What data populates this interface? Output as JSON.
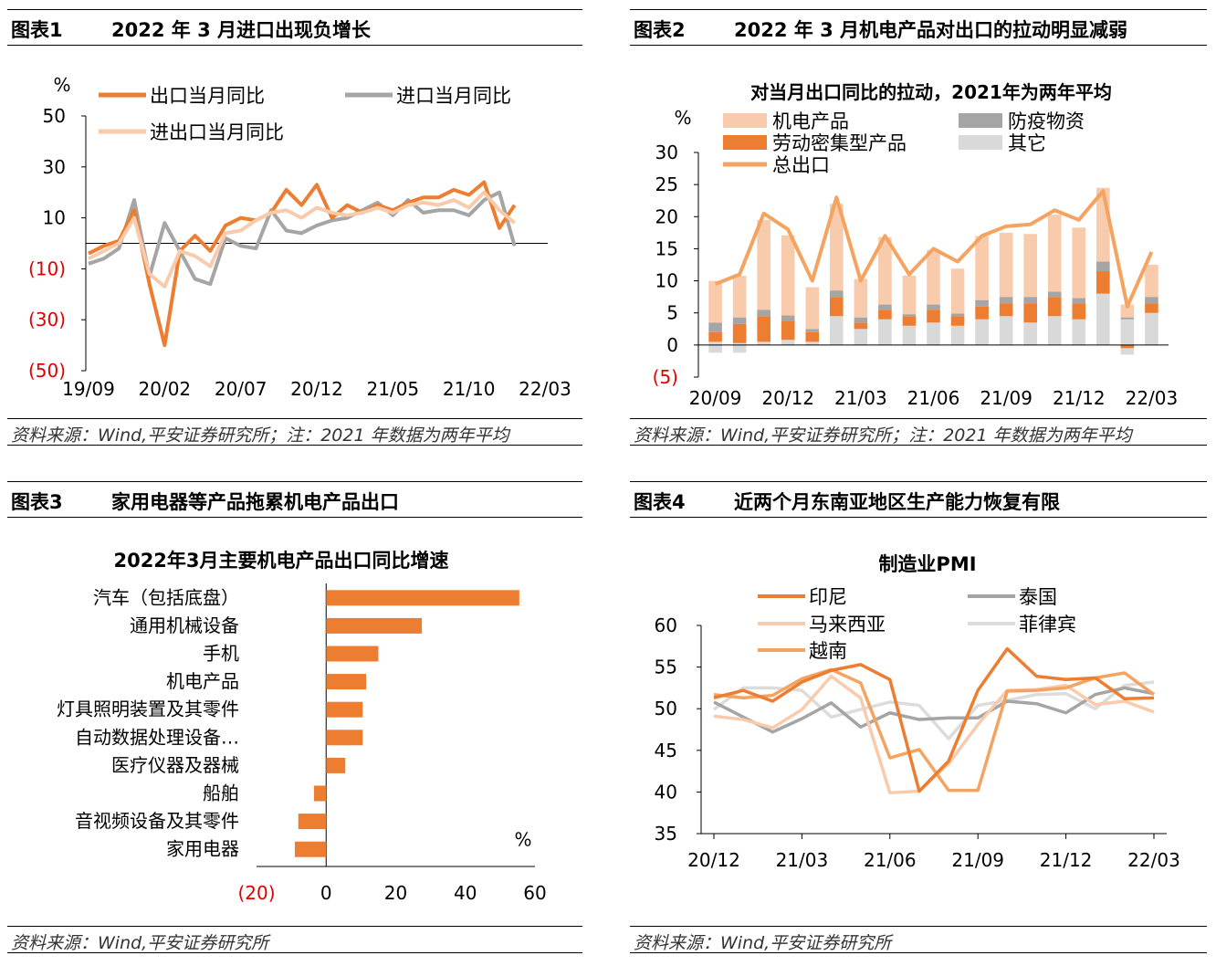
{
  "panels": [
    {
      "label": "图表1",
      "title": "2022 年 3 月进口出现负增长",
      "source": "资料来源：Wind,平安证券研究所；注：2021 年数据为两年平均"
    },
    {
      "label": "图表2",
      "title": "2022 年 3 月机电产品对出口的拉动明显减弱",
      "source": "资料来源：Wind,平安证券研究所；注：2021 年数据为两年平均"
    },
    {
      "label": "图表3",
      "title": "家用电器等产品拖累机电产品出口",
      "source": "资料来源：Wind,平安证券研究所"
    },
    {
      "label": "图表4",
      "title": "近两个月东南亚地区生产能力恢复有限",
      "source": "资料来源：Wind,平安证券研究所"
    }
  ],
  "chart_data": [
    {
      "type": "line",
      "unit": "%",
      "ylim": [
        -50,
        50
      ],
      "yticks": [
        50,
        30,
        10,
        -10,
        -30,
        -50
      ],
      "ytick_labels": [
        "50",
        "30",
        "10",
        "(10)",
        "(30)",
        "(50)"
      ],
      "xtick_labels": [
        "19/09",
        "20/02",
        "20/07",
        "20/12",
        "21/05",
        "21/10",
        "22/03"
      ],
      "n_points": 31,
      "series": [
        {
          "name": "出口当月同比",
          "color": "#ed7d31",
          "values": [
            -4,
            -1,
            1,
            13,
            -16,
            -40,
            -3,
            3,
            -3,
            7,
            10,
            9,
            12,
            21,
            15,
            23,
            10,
            15,
            12,
            15,
            13,
            16,
            18,
            18,
            21,
            19,
            24,
            6,
            15,
            null,
            null
          ]
        },
        {
          "name": "进口当月同比",
          "color": "#a5a5a5",
          "values": [
            -8,
            -6,
            -2,
            17,
            -13,
            8,
            -3,
            -14,
            -16,
            2,
            -1,
            -2,
            13,
            5,
            4,
            7,
            9,
            10,
            13,
            16,
            11,
            17,
            12,
            13,
            13,
            11,
            17,
            20,
            -1,
            null,
            null
          ]
        },
        {
          "name": "进出口当月同比",
          "color": "#f8cbad",
          "values": [
            -6,
            -3,
            0,
            10,
            -12,
            -17,
            -3,
            -5,
            -9,
            4,
            5,
            9,
            12,
            13,
            10,
            14,
            12,
            11,
            12,
            14,
            12,
            15,
            16,
            15,
            17,
            14,
            20,
            13,
            8,
            null,
            null
          ]
        }
      ]
    },
    {
      "type": "bar",
      "subtitle": "对当月出口同比的拉动，2021年为两年平均",
      "unit": "%",
      "ylim": [
        -5,
        30
      ],
      "yticks": [
        30,
        25,
        20,
        15,
        10,
        5,
        0,
        -5
      ],
      "ytick_labels": [
        "30",
        "25",
        "20",
        "15",
        "10",
        "5",
        "0",
        "(5)"
      ],
      "xtick_labels": [
        "20/09",
        "20/12",
        "21/03",
        "21/06",
        "21/09",
        "21/12",
        "22/03"
      ],
      "series": [
        {
          "name": "机电产品",
          "color": "#f8cbad",
          "values": [
            6.5,
            6.5,
            14.0,
            12.5,
            6.5,
            13.5,
            6.0,
            10.5,
            6.0,
            8.5,
            7.0,
            10.0,
            10.0,
            9.8,
            12.0,
            11.0,
            11.5,
            2.0,
            5.0
          ]
        },
        {
          "name": "劳动密集型产品",
          "color": "#ed7d31",
          "values": [
            1.5,
            3.0,
            4.0,
            3.0,
            1.5,
            3.0,
            1.0,
            1.5,
            1.5,
            2.0,
            1.5,
            2.0,
            2.0,
            3.0,
            3.0,
            2.5,
            3.5,
            -0.5,
            1.5
          ]
        },
        {
          "name": "防疫物资",
          "color": "#a5a5a5",
          "values": [
            1.5,
            1.0,
            1.0,
            0.8,
            0.5,
            1.0,
            0.8,
            0.8,
            0.3,
            0.8,
            0.4,
            1.0,
            1.0,
            1.0,
            0.8,
            0.8,
            1.5,
            0.3,
            1.0
          ]
        },
        {
          "name": "其它",
          "color": "#d9d9d9",
          "values": [
            0.5,
            0.3,
            0.5,
            0.8,
            0.5,
            4.5,
            2.5,
            4.0,
            3.0,
            3.5,
            3.0,
            4.0,
            4.5,
            3.5,
            4.5,
            4.0,
            8.0,
            4.0,
            5.0
          ]
        },
        {
          "name": "其它(负)",
          "color": "#d9d9d9",
          "values": [
            -1.2,
            -1.2,
            0,
            0,
            0,
            0,
            0,
            0,
            0,
            0,
            0,
            0,
            0,
            0,
            0,
            0,
            0,
            -1.0,
            0
          ]
        },
        {
          "name": "总出口",
          "color": "#f4a460",
          "values": [
            9.5,
            11.0,
            20.5,
            18.0,
            10.0,
            23.0,
            10.0,
            17.0,
            11.0,
            15.0,
            13.0,
            17.0,
            18.5,
            18.8,
            21.0,
            19.5,
            24.0,
            6.0,
            14.5
          ]
        }
      ],
      "x_slots": [
        0,
        1,
        2,
        3,
        4,
        5,
        6,
        7,
        8,
        9,
        10,
        11,
        12,
        13,
        14,
        15,
        16,
        17,
        18
      ]
    },
    {
      "type": "bar",
      "orientation": "horizontal",
      "subtitle": "2022年3月主要机电产品出口同比增速",
      "unit": "%",
      "xlim": [
        -20,
        60
      ],
      "xticks": [
        -20,
        0,
        20,
        40,
        60
      ],
      "xtick_labels": [
        "(20)",
        "0",
        "20",
        "40",
        "60"
      ],
      "color": "#ed7d31",
      "categories": [
        "汽车（包括底盘）",
        "通用机械设备",
        "手机",
        "机电产品",
        "灯具照明装置及其零件",
        "自动数据处理设备…",
        "医疗仪器及器械",
        "船舶",
        "音视频设备及其零件",
        "家用电器"
      ],
      "values": [
        55.5,
        27.5,
        15.0,
        11.5,
        10.5,
        10.5,
        5.5,
        -3.5,
        -8.0,
        -9.0
      ]
    },
    {
      "type": "line",
      "subtitle": "制造业PMI",
      "ylim": [
        35,
        60
      ],
      "yticks": [
        60,
        55,
        50,
        45,
        40,
        35
      ],
      "ytick_labels": [
        "60",
        "55",
        "50",
        "45",
        "40",
        "35"
      ],
      "xtick_labels": [
        "20/12",
        "21/03",
        "21/06",
        "21/09",
        "21/12",
        "22/03"
      ],
      "series": [
        {
          "name": "印尼",
          "color": "#ed7d31",
          "values": [
            51.3,
            52.2,
            50.9,
            53.2,
            54.6,
            55.3,
            53.5,
            40.1,
            43.7,
            52.2,
            57.2,
            53.9,
            53.5,
            53.7,
            51.2,
            51.3
          ]
        },
        {
          "name": "泰国",
          "color": "#a5a5a5",
          "values": [
            50.8,
            49.0,
            47.2,
            48.8,
            50.7,
            47.8,
            49.5,
            48.7,
            48.9,
            48.9,
            50.9,
            50.6,
            49.5,
            51.7,
            52.5,
            51.8
          ]
        },
        {
          "name": "马来西亚",
          "color": "#f8cbad",
          "values": [
            49.1,
            48.7,
            47.7,
            49.9,
            53.9,
            51.3,
            39.9,
            40.1,
            43.4,
            48.1,
            52.2,
            52.3,
            52.8,
            50.5,
            50.9,
            49.6
          ]
        },
        {
          "name": "菲律宾",
          "color": "#dcdcdc",
          "values": [
            49.9,
            52.5,
            52.5,
            52.2,
            49.0,
            49.9,
            50.8,
            50.4,
            46.4,
            50.4,
            51.0,
            51.7,
            51.8,
            50.0,
            52.8,
            53.2
          ]
        },
        {
          "name": "越南",
          "color": "#f4a460",
          "values": [
            51.7,
            51.3,
            51.6,
            53.6,
            54.7,
            53.1,
            44.1,
            45.1,
            40.2,
            40.2,
            52.1,
            52.2,
            52.5,
            53.7,
            54.3,
            51.7
          ]
        }
      ]
    }
  ]
}
